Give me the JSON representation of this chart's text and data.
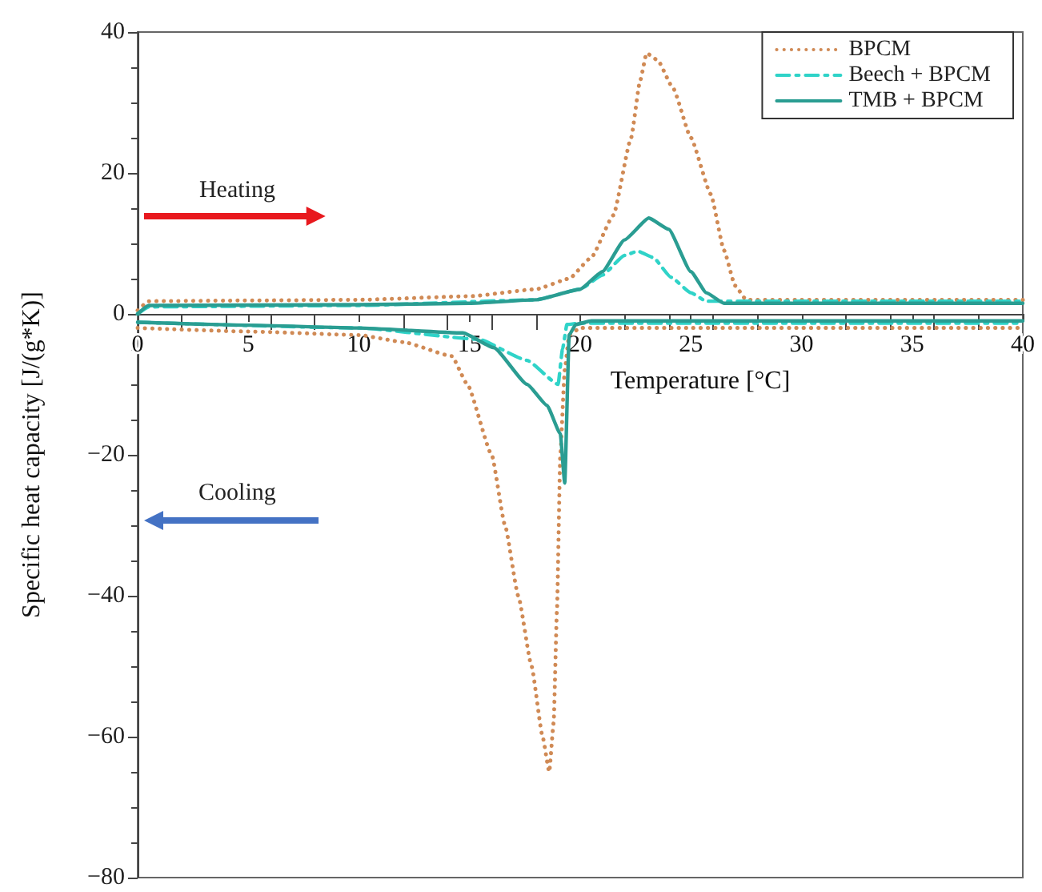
{
  "chart_data": {
    "type": "line",
    "xlabel": "Temperature [°C]",
    "ylabel": "Specific heat capacity [J/(g*K)]",
    "xlim": [
      0,
      40
    ],
    "xticks": [
      0,
      5,
      10,
      15,
      20,
      25,
      30,
      35,
      40
    ],
    "ylim": [
      -80,
      40
    ],
    "yticks": [
      {
        "value": -80,
        "label": "−80"
      },
      {
        "value": -60,
        "label": "−60"
      },
      {
        "value": -40,
        "label": "−40"
      },
      {
        "value": -20,
        "label": "−20"
      },
      0,
      20,
      40
    ],
    "legend": "top right",
    "marker": "none",
    "annotations": [
      "Heating",
      "Cooling"
    ],
    "series": [
      {
        "name": "BPCM",
        "color": "#d08a55",
        "line_style": "dotted",
        "x": [
          0,
          0.5,
          5,
          10,
          15,
          18,
          19.5,
          20.5,
          21.5,
          22.3,
          22.7,
          23,
          23.5,
          24.2,
          25,
          25.9,
          26.5,
          27,
          27.5,
          30,
          40
        ],
        "values": [
          0.5,
          1.8,
          1.9,
          2,
          2.5,
          3.5,
          5,
          8,
          14,
          25,
          33,
          37,
          36,
          32,
          25,
          17,
          9,
          4,
          2,
          2,
          2
        ]
      },
      {
        "name": "Beech + BPCM",
        "color": "#2fd3c8",
        "line_style": "dashed",
        "x": [
          0,
          0.5,
          10,
          18,
          20,
          21,
          22,
          22.6,
          23.3,
          24.1,
          25,
          25.7,
          40
        ],
        "values": [
          0,
          1,
          1.2,
          2,
          3.5,
          5.5,
          8.3,
          8.9,
          8,
          5.2,
          3,
          1.8,
          1.8
        ]
      },
      {
        "name": "TMB + BPCM",
        "color": "#2a9d92",
        "line_style": "solid",
        "x": [
          0,
          0.5,
          10,
          15,
          18,
          20,
          21,
          22,
          23.1,
          24,
          25,
          25.7,
          26.5,
          40
        ],
        "values": [
          0,
          1.2,
          1.3,
          1.5,
          2,
          3.5,
          6,
          10.5,
          13.6,
          12,
          6,
          3,
          1.5,
          1.5
        ]
      },
      {
        "color": "#d08a55",
        "line_style": "dotted",
        "x": [
          0,
          5,
          10,
          12,
          14.2,
          14.9,
          16,
          16.6,
          17.2,
          17.8,
          18.3,
          18.6,
          18.8,
          18.95,
          19.1,
          19.3,
          19.5,
          20,
          25,
          40
        ],
        "values": [
          -2,
          -2.5,
          -3,
          -4,
          -6,
          -10,
          -20,
          -30,
          -40,
          -50,
          -60,
          -65,
          -58,
          -42,
          -20,
          -8,
          -3,
          -2,
          -2,
          -2
        ]
      },
      {
        "color": "#2fd3c8",
        "line_style": "dashed",
        "x": [
          0,
          10,
          15.4,
          17.6,
          19,
          19.2,
          19.4,
          20,
          40
        ],
        "values": [
          -1.2,
          -2,
          -3.6,
          -6.6,
          -10,
          -5,
          -1.5,
          -1.3,
          -1.3
        ]
      },
      {
        "color": "#2a9d92",
        "line_style": "solid",
        "x": [
          0,
          5,
          10,
          14.7,
          16.1,
          17.6,
          18.5,
          19.1,
          19.3,
          19.5,
          19.8,
          20.5,
          25,
          40
        ],
        "values": [
          -1.2,
          -1.6,
          -2,
          -2.7,
          -4.8,
          -10,
          -13,
          -17,
          -24,
          -3,
          -1.5,
          -1,
          -1,
          -1
        ]
      }
    ]
  }
}
